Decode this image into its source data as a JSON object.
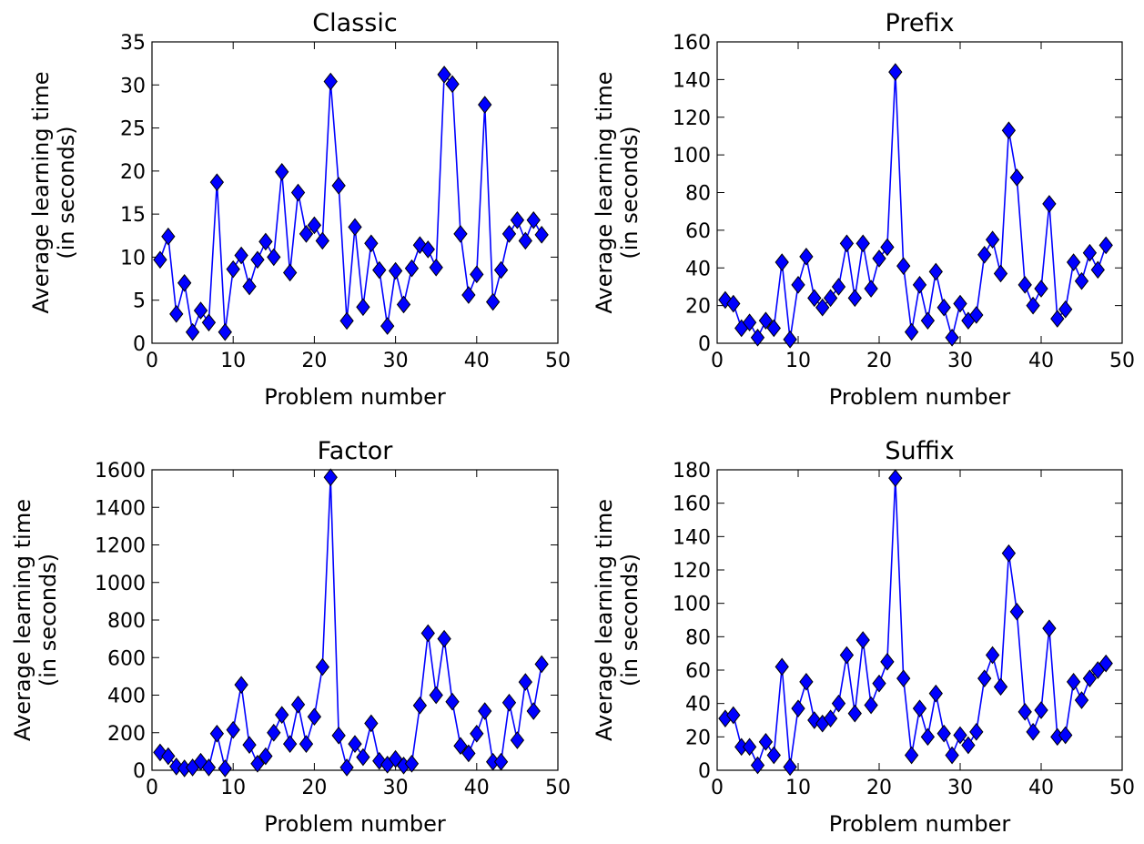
{
  "chart_data": [
    {
      "type": "line",
      "title": "Classic",
      "xlabel": "Problem number",
      "ylabel_lines": [
        "Average learning time",
        "(in seconds)"
      ],
      "xlim": [
        0,
        50
      ],
      "ylim": [
        0,
        35
      ],
      "xticks": [
        0,
        10,
        20,
        30,
        40,
        50
      ],
      "yticks": [
        0,
        5,
        10,
        15,
        20,
        25,
        30,
        35
      ],
      "grid": false,
      "marker": "diamond",
      "color": "#0000ff",
      "x": [
        1,
        2,
        3,
        4,
        5,
        6,
        7,
        8,
        9,
        10,
        11,
        12,
        13,
        14,
        15,
        16,
        17,
        18,
        19,
        20,
        21,
        22,
        23,
        24,
        25,
        26,
        27,
        28,
        29,
        30,
        31,
        32,
        33,
        34,
        35,
        36,
        37,
        38,
        39,
        40,
        41,
        42,
        43,
        44,
        45,
        46,
        47,
        48
      ],
      "y": [
        9.7,
        12.4,
        3.4,
        7.0,
        1.3,
        3.8,
        2.4,
        18.7,
        1.3,
        8.6,
        10.2,
        6.6,
        9.7,
        11.8,
        10.0,
        19.9,
        8.2,
        17.5,
        12.7,
        13.7,
        11.9,
        30.4,
        18.3,
        2.6,
        13.5,
        4.2,
        11.6,
        8.5,
        2.0,
        8.4,
        4.5,
        8.7,
        11.4,
        10.9,
        8.8,
        31.2,
        30.1,
        12.7,
        5.6,
        8.0,
        27.7,
        4.8,
        8.5,
        12.7,
        14.3,
        11.9,
        14.3,
        12.6
      ]
    },
    {
      "type": "line",
      "title": "Prefix",
      "xlabel": "Problem number",
      "ylabel_lines": [
        "Average learning time",
        "(in seconds)"
      ],
      "xlim": [
        0,
        50
      ],
      "ylim": [
        0,
        160
      ],
      "xticks": [
        0,
        10,
        20,
        30,
        40,
        50
      ],
      "yticks": [
        0,
        20,
        40,
        60,
        80,
        100,
        120,
        140,
        160
      ],
      "grid": false,
      "marker": "diamond",
      "color": "#0000ff",
      "x": [
        1,
        2,
        3,
        4,
        5,
        6,
        7,
        8,
        9,
        10,
        11,
        12,
        13,
        14,
        15,
        16,
        17,
        18,
        19,
        20,
        21,
        22,
        23,
        24,
        25,
        26,
        27,
        28,
        29,
        30,
        31,
        32,
        33,
        34,
        35,
        36,
        37,
        38,
        39,
        40,
        41,
        42,
        43,
        44,
        45,
        46,
        47,
        48
      ],
      "y": [
        23,
        21,
        8,
        11,
        3,
        12,
        8,
        43,
        2,
        31,
        46,
        24,
        19,
        24,
        30,
        53,
        24,
        53,
        29,
        45,
        51,
        144,
        41,
        6,
        31,
        12,
        38,
        19,
        3,
        21,
        12,
        15,
        47,
        55,
        37,
        113,
        88,
        31,
        20,
        29,
        74,
        13,
        18,
        43,
        33,
        48,
        39,
        52
      ]
    },
    {
      "type": "line",
      "title": "Factor",
      "xlabel": "Problem number",
      "ylabel_lines": [
        "Average learning time",
        "(in seconds)"
      ],
      "xlim": [
        0,
        50
      ],
      "ylim": [
        0,
        1600
      ],
      "xticks": [
        0,
        10,
        20,
        30,
        40,
        50
      ],
      "yticks": [
        0,
        200,
        400,
        600,
        800,
        1000,
        1200,
        1400,
        1600
      ],
      "grid": false,
      "marker": "diamond",
      "color": "#0000ff",
      "x": [
        1,
        2,
        3,
        4,
        5,
        6,
        7,
        8,
        9,
        10,
        11,
        12,
        13,
        14,
        15,
        16,
        17,
        18,
        19,
        20,
        21,
        22,
        23,
        24,
        25,
        26,
        27,
        28,
        29,
        30,
        31,
        32,
        33,
        34,
        35,
        36,
        37,
        38,
        39,
        40,
        41,
        42,
        43,
        44,
        45,
        46,
        47,
        48
      ],
      "y": [
        95,
        75,
        20,
        10,
        15,
        45,
        15,
        195,
        10,
        215,
        455,
        135,
        35,
        75,
        200,
        295,
        140,
        350,
        140,
        285,
        550,
        1560,
        185,
        15,
        140,
        70,
        250,
        50,
        30,
        60,
        25,
        35,
        345,
        730,
        400,
        700,
        365,
        130,
        90,
        195,
        315,
        45,
        45,
        360,
        160,
        470,
        315,
        565
      ]
    },
    {
      "type": "line",
      "title": "Suffix",
      "xlabel": "Problem number",
      "ylabel_lines": [
        "Average learning time",
        "(in seconds)"
      ],
      "xlim": [
        0,
        50
      ],
      "ylim": [
        0,
        180
      ],
      "xticks": [
        0,
        10,
        20,
        30,
        40,
        50
      ],
      "yticks": [
        0,
        20,
        40,
        60,
        80,
        100,
        120,
        140,
        160,
        180
      ],
      "grid": false,
      "marker": "diamond",
      "color": "#0000ff",
      "x": [
        1,
        2,
        3,
        4,
        5,
        6,
        7,
        8,
        9,
        10,
        11,
        12,
        13,
        14,
        15,
        16,
        17,
        18,
        19,
        20,
        21,
        22,
        23,
        24,
        25,
        26,
        27,
        28,
        29,
        30,
        31,
        32,
        33,
        34,
        35,
        36,
        37,
        38,
        39,
        40,
        41,
        42,
        43,
        44,
        45,
        46,
        47,
        48
      ],
      "y": [
        31,
        33,
        14,
        14,
        3,
        17,
        9,
        62,
        2,
        37,
        53,
        30,
        28,
        31,
        40,
        69,
        34,
        78,
        39,
        52,
        65,
        175,
        55,
        9,
        37,
        20,
        46,
        22,
        9,
        21,
        15,
        23,
        55,
        69,
        50,
        130,
        95,
        35,
        23,
        36,
        85,
        20,
        21,
        53,
        42,
        55,
        60,
        64
      ]
    }
  ]
}
